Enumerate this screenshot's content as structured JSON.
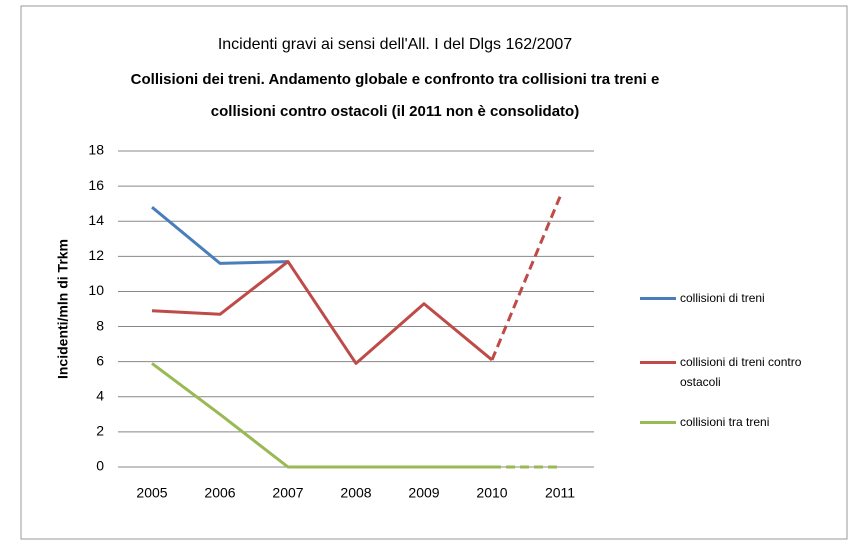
{
  "chart_data": {
    "type": "line",
    "title": "Incidenti gravi ai sensi dell'All. I del Dlgs 162/2007",
    "subtitle": [
      "Collisioni dei treni. Andamento globale e confronto tra collisioni tra treni e",
      "collisioni contro ostacoli (il 2011 non è consolidato)"
    ],
    "y_label": "Incidenti/mln di Trkm",
    "categories": [
      "2005",
      "2006",
      "2007",
      "2008",
      "2009",
      "2010",
      "2011"
    ],
    "series": [
      {
        "name": "collisioni di treni",
        "color": "#4a7ebb",
        "values": [
          14.8,
          11.6,
          11.7,
          null,
          null,
          null,
          null
        ],
        "dashed_last_segment": false
      },
      {
        "name": "collisioni di treni contro ostacoli",
        "color": "#be4b48",
        "values": [
          8.9,
          8.7,
          11.7,
          5.9,
          9.3,
          6.1,
          15.4
        ],
        "dashed_last_segment": true
      },
      {
        "name": "collisioni tra treni",
        "color": "#98b954",
        "values": [
          5.9,
          3.0,
          0,
          0,
          0,
          0,
          0
        ],
        "dashed_last_segment": true
      }
    ],
    "ylim": [
      0,
      18
    ],
    "yticks": [
      0,
      2,
      4,
      6,
      8,
      10,
      12,
      14,
      16,
      18
    ],
    "grid": true,
    "legend": "right"
  }
}
